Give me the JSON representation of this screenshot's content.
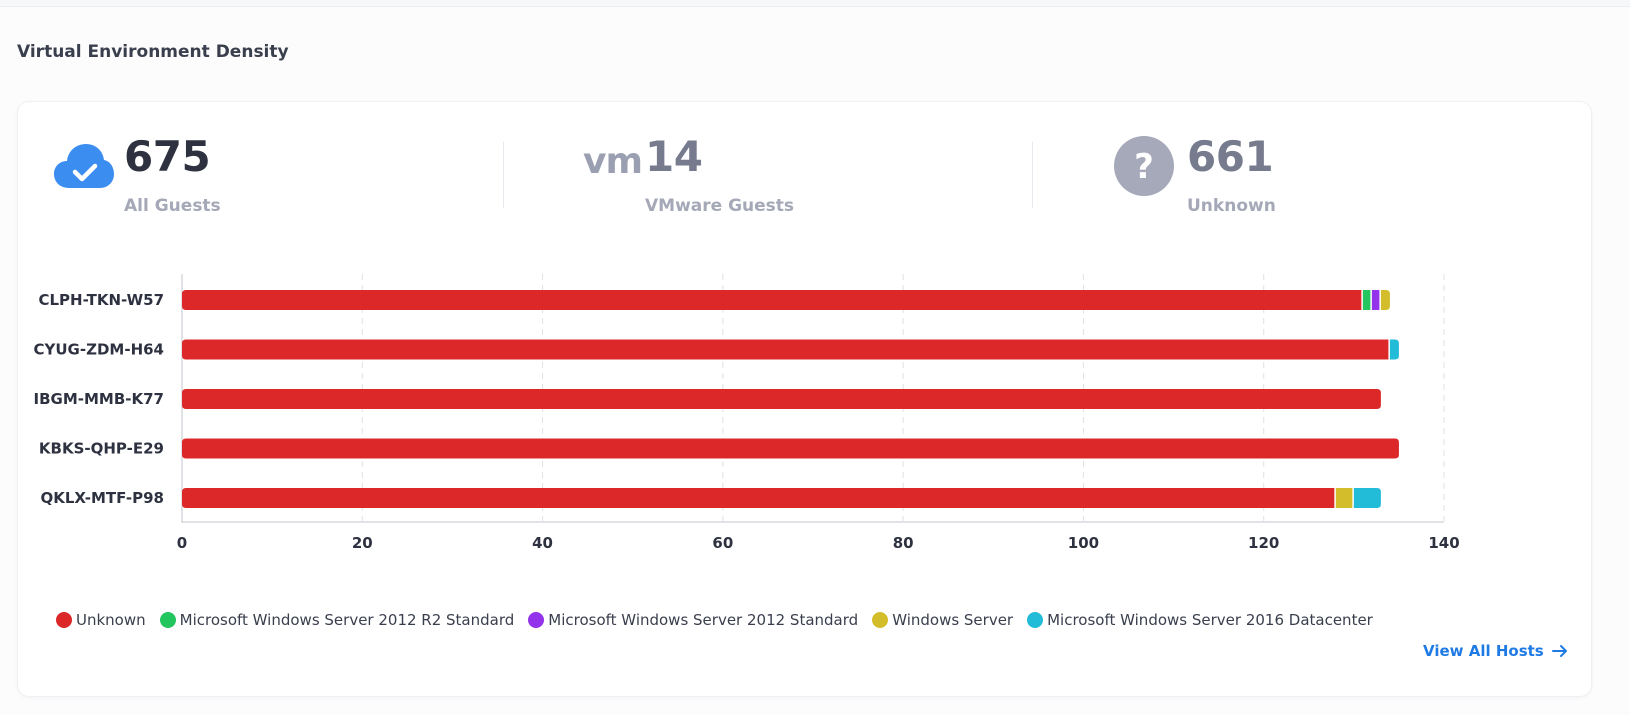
{
  "section_title": "Virtual Environment Density",
  "stats": [
    {
      "value": "675",
      "label": "All Guests",
      "icon": "cloud-check-icon",
      "value_color": "#2e3240",
      "icon_color": "#3b8ef0"
    },
    {
      "value": "14",
      "label": "VMware Guests",
      "icon": "vmware-logo-icon",
      "icon_text": "vm",
      "value_color": "#767b8e",
      "icon_color": "#9aa0b1"
    },
    {
      "value": "661",
      "label": "Unknown",
      "icon": "question-circle-icon",
      "value_color": "#767b8e",
      "icon_color": "#a6a9ba"
    }
  ],
  "chart_data": {
    "type": "bar",
    "orientation": "horizontal",
    "stacked": true,
    "categories": [
      "CLPH-TKN-W57",
      "CYUG-ZDM-H64",
      "IBGM-MMB-K77",
      "KBKS-QHP-E29",
      "QKLX-MTF-P98"
    ],
    "series": [
      {
        "name": "Unknown",
        "color": "#dc2828",
        "values": [
          131,
          134,
          133,
          135,
          128
        ]
      },
      {
        "name": "Microsoft Windows Server 2012 R2 Standard",
        "color": "#22c55e",
        "values": [
          1,
          0,
          0,
          0,
          0
        ]
      },
      {
        "name": "Microsoft Windows Server 2012 Standard",
        "color": "#9333ea",
        "values": [
          1,
          0,
          0,
          0,
          0
        ]
      },
      {
        "name": "Windows Server",
        "color": "#d4bd2a",
        "values": [
          1,
          0,
          0,
          0,
          2
        ]
      },
      {
        "name": "Microsoft Windows Server 2016 Datacenter",
        "color": "#22bcd8",
        "values": [
          0,
          1,
          0,
          0,
          3
        ]
      }
    ],
    "xlim": [
      0,
      140
    ],
    "xticks": [
      0,
      20,
      40,
      60,
      80,
      100,
      120,
      140
    ],
    "grid": "vertical-dashed",
    "legend_position": "bottom-left"
  },
  "view_all_label": "View All Hosts"
}
